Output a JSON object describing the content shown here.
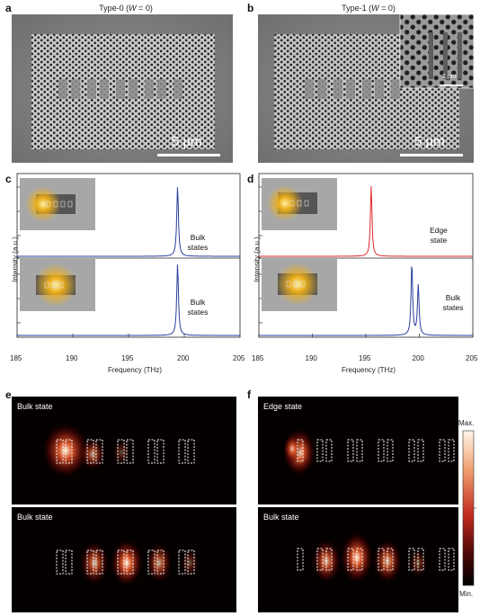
{
  "panels": {
    "a": {
      "letter": "a",
      "title_prefix": "Type-0 (",
      "title_var": "W",
      "title_suffix": " = 0)",
      "scale": "5 µm"
    },
    "b": {
      "letter": "b",
      "title_prefix": "Type-1 (",
      "title_var": "W",
      "title_suffix": " = 0)",
      "scale": "5 µm",
      "inset_scale": "1 µm"
    },
    "c": {
      "letter": "c",
      "upper_label_1": "Bulk",
      "upper_label_2": "states",
      "lower_label_1": "Bulk",
      "lower_label_2": "states",
      "xlabel": "Frequency (THz)",
      "ylabel": "Intensity (a.u.)"
    },
    "d": {
      "letter": "d",
      "upper_label_1": "Edge",
      "upper_label_2": "state",
      "lower_label_1": "Bulk",
      "lower_label_2": "states",
      "xlabel": "Frequency (THz)",
      "ylabel": "Intensity (a.u.)"
    },
    "e": {
      "letter": "e",
      "top_label": "Bulk state",
      "bottom_label": "Bulk state"
    },
    "f": {
      "letter": "f",
      "top_label": "Edge state",
      "bottom_label": "Bulk state"
    }
  },
  "colorbar": {
    "max": "Max.",
    "min": "Min."
  },
  "colors": {
    "bulk_line": "#2b3f9e",
    "edge_line": "#e0282a"
  },
  "chart_data": [
    {
      "type": "line",
      "panel": "c-upper",
      "series": [
        {
          "color": "#2b3f9e",
          "peaks": [
            {
              "x": 199.4,
              "y": 1.0
            }
          ]
        }
      ],
      "xlim": [
        185,
        205
      ]
    },
    {
      "type": "line",
      "panel": "c-lower",
      "series": [
        {
          "color": "#2b3f9e",
          "peaks": [
            {
              "x": 199.4,
              "y": 1.0
            }
          ]
        }
      ],
      "xlim": [
        185,
        205
      ],
      "xticks": [
        "185",
        "190",
        "195",
        "200",
        "205"
      ],
      "xlabel": "Frequency (THz)",
      "ylabel": "Intensity (a.u.)"
    },
    {
      "type": "line",
      "panel": "d-upper",
      "series": [
        {
          "color": "#e0282a",
          "peaks": [
            {
              "x": 195.5,
              "y": 1.0
            }
          ]
        }
      ],
      "xlim": [
        185,
        205
      ]
    },
    {
      "type": "line",
      "panel": "d-lower",
      "series": [
        {
          "color": "#2b3f9e",
          "peaks": [
            {
              "x": 199.3,
              "y": 1.0
            },
            {
              "x": 199.9,
              "y": 0.7
            }
          ]
        }
      ],
      "xlim": [
        185,
        205
      ],
      "xticks": [
        "185",
        "190",
        "195",
        "200",
        "205"
      ],
      "xlabel": "Frequency (THz)",
      "ylabel": "Intensity (a.u.)"
    }
  ]
}
